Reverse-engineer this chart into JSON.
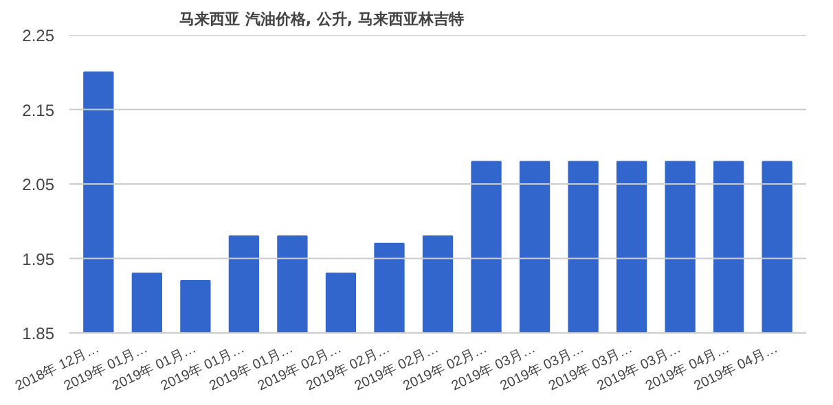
{
  "chart_data": {
    "type": "bar",
    "title": "马来西亚 汽油价格, 公升, 马来西亚林吉特",
    "categories": [
      "2018年 12月…",
      "2019年 01月…",
      "2019年 01月…",
      "2019年 01月…",
      "2019年 01月…",
      "2019年 02月…",
      "2019年 02月…",
      "2019年 02月…",
      "2019年 02月…",
      "2019年 03月…",
      "2019年 03月…",
      "2019年 03月…",
      "2019年 03月…",
      "2019年 04月…",
      "2019年 04月…"
    ],
    "values": [
      2.2,
      1.93,
      1.92,
      1.98,
      1.98,
      1.93,
      1.97,
      1.98,
      2.08,
      2.08,
      2.08,
      2.08,
      2.08,
      2.08,
      2.08
    ],
    "color": "#3366cc",
    "ylim": [
      1.85,
      2.25
    ],
    "yticks": [
      1.85,
      1.95,
      2.05,
      2.15,
      2.25
    ],
    "grid": "y"
  }
}
